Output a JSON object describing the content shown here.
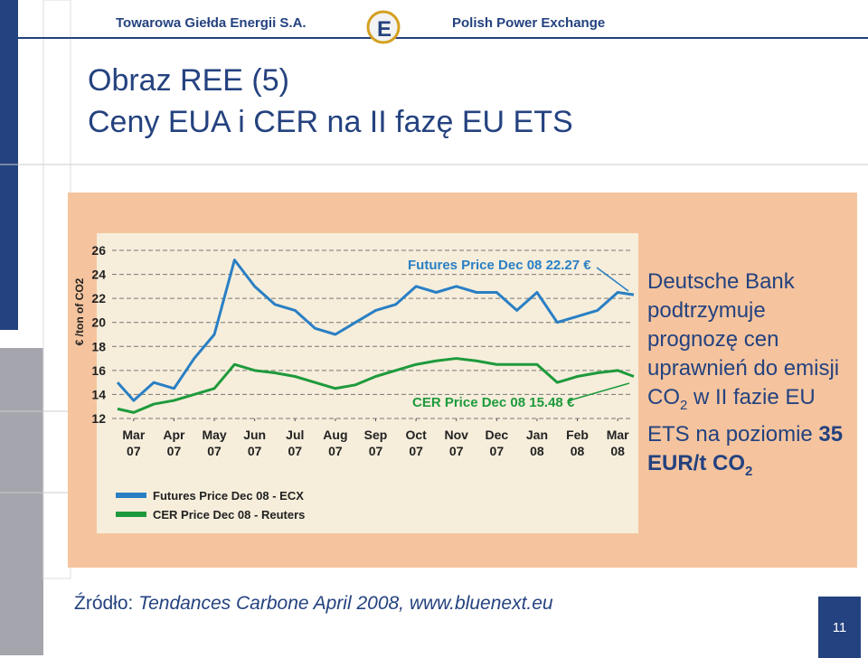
{
  "header": {
    "left": "Towarowa Giełda Energii S.A.",
    "right": "Polish Power Exchange"
  },
  "title": {
    "line1": "Obraz REE (5)",
    "line2": "Ceny EUA i CER na II fazę EU ETS"
  },
  "side_text": {
    "parts": [
      "Deutsche Bank podtrzymuje prognozę cen uprawnień do emisji CO",
      "2",
      " w II fazie EU ETS na poziomie ",
      "35 EUR/t",
      " CO",
      "2"
    ]
  },
  "source": {
    "label": "Źródło:",
    "text": " Tendances Carbone April 2008, www.bluenext.eu"
  },
  "page_number": "11",
  "chart_data": {
    "type": "line",
    "y_label": "€ /ton of CO2",
    "annotations": [
      "Futures Price Dec 08 22.27 €",
      "CER Price Dec 08 15.48 €"
    ],
    "x": [
      -0.4,
      0,
      0.5,
      1,
      1.5,
      2,
      2.5,
      3,
      3.5,
      4,
      4.5,
      5,
      5.5,
      6,
      6.5,
      7,
      7.5,
      8,
      8.5,
      9,
      9.5,
      10,
      10.5,
      11,
      11.5,
      12,
      12.4
    ],
    "xlim": [
      -0.4,
      12.4
    ],
    "xticks": [
      {
        "value": 0,
        "label": "Mar\n07"
      },
      {
        "value": 1,
        "label": "Apr\n07"
      },
      {
        "value": 2,
        "label": "May\n07"
      },
      {
        "value": 3,
        "label": "Jun\n07"
      },
      {
        "value": 4,
        "label": "Jul\n07"
      },
      {
        "value": 5,
        "label": "Aug\n07"
      },
      {
        "value": 6,
        "label": "Sep\n07"
      },
      {
        "value": 7,
        "label": "Oct\n07"
      },
      {
        "value": 8,
        "label": "Nov\n07"
      },
      {
        "value": 9,
        "label": "Dec\n07"
      },
      {
        "value": 10,
        "label": "Jan\n08"
      },
      {
        "value": 11,
        "label": "Feb\n08"
      },
      {
        "value": 12,
        "label": "Mar\n08"
      }
    ],
    "ylim": [
      12,
      26
    ],
    "yticks": [
      12,
      14,
      16,
      18,
      20,
      22,
      24,
      26
    ],
    "grid": true,
    "series": [
      {
        "name": "Futures Price Dec 08 - ECX",
        "color": "#2a7fc4",
        "values": [
          15,
          13.5,
          15,
          14.5,
          17,
          19,
          25.2,
          23,
          21.5,
          21,
          19.5,
          19,
          20,
          21,
          21.5,
          23,
          22.5,
          23,
          22.5,
          22.5,
          21,
          22.5,
          20,
          20.5,
          21,
          22.5,
          22.3
        ]
      },
      {
        "name": "CER Price Dec 08 - Reuters",
        "color": "#1e9a3c",
        "values": [
          12.8,
          12.5,
          13.2,
          13.5,
          14,
          14.5,
          16.5,
          16,
          15.8,
          15.5,
          15,
          14.5,
          14.8,
          15.5,
          16,
          16.5,
          16.8,
          17,
          16.8,
          16.5,
          16.5,
          16.5,
          15,
          15.5,
          15.8,
          16,
          15.5
        ]
      }
    ]
  }
}
